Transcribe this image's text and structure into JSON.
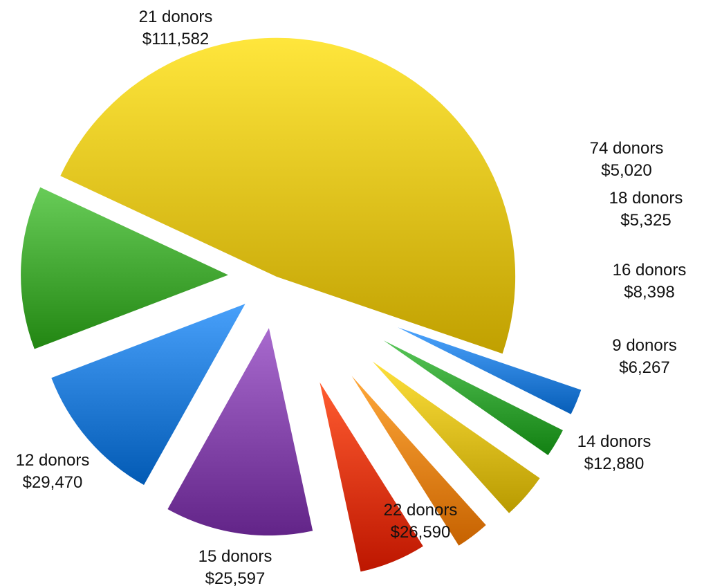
{
  "chart_data": {
    "type": "pie",
    "exploded": true,
    "slices": [
      {
        "donors_label": "21 donors",
        "amount_label": "$111,582",
        "value": 111582,
        "color": "#e8c81e"
      },
      {
        "donors_label": "74 donors",
        "amount_label": "$5,020",
        "value": 5020,
        "color": "#2f86e0"
      },
      {
        "donors_label": "18 donors",
        "amount_label": "$5,325",
        "value": 5325,
        "color": "#3aa83a"
      },
      {
        "donors_label": "16 donors",
        "amount_label": "$8,398",
        "value": 8398,
        "color": "#e0c21e"
      },
      {
        "donors_label": "9 donors",
        "amount_label": "$6,267",
        "value": 6267,
        "color": "#ee8a1c"
      },
      {
        "donors_label": "14 donors",
        "amount_label": "$12,880",
        "value": 12880,
        "color": "#e53e12"
      },
      {
        "donors_label": "22 donors",
        "amount_label": "$26,590",
        "value": 26590,
        "color": "#8a4cb0"
      },
      {
        "donors_label": "15 donors",
        "amount_label": "$25,597",
        "value": 25597,
        "color": "#2a82dc"
      },
      {
        "donors_label": "12 donors",
        "amount_label": "$29,470",
        "value": 29470,
        "color": "#4aae3a"
      }
    ]
  }
}
